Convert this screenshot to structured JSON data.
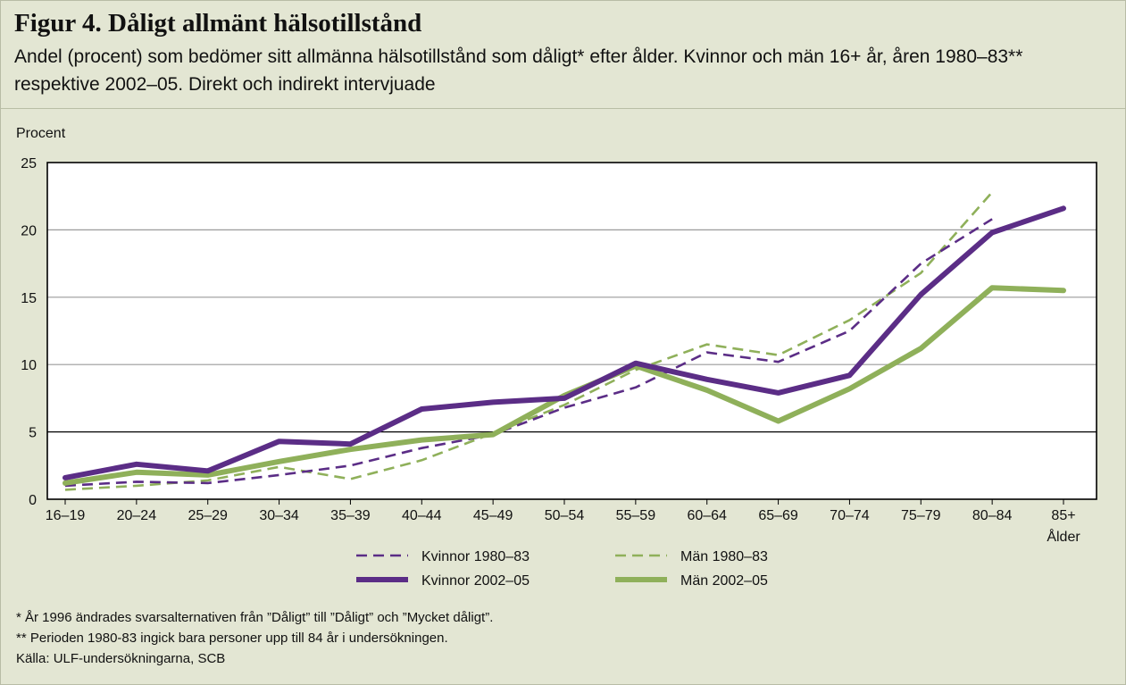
{
  "chart_data": {
    "type": "line",
    "title": "Figur 4. Dåligt allmänt hälsotillstånd",
    "subtitle": "Andel (procent) som bedömer sitt allmänna hälsotillstånd som dåligt* efter ålder. Kvinnor och män 16+ år, åren 1980–83** respektive 2002–05. Direkt och indirekt intervjuade",
    "ylabel": "Procent",
    "xlabel": "Ålder",
    "ylim": [
      0,
      25
    ],
    "yticks": [
      "0",
      "5",
      "10",
      "15",
      "20",
      "25"
    ],
    "categories": [
      "16–19",
      "20–24",
      "25–29",
      "30–34",
      "35–39",
      "40–44",
      "45–49",
      "50–54",
      "55–59",
      "60–64",
      "65–69",
      "70–74",
      "75–79",
      "80–84",
      "85+"
    ],
    "grid": true,
    "legend_position": "bottom",
    "series": [
      {
        "name": "Kvinnor 1980–83",
        "color": "#5b2d86",
        "style": "dashed",
        "values": [
          1.0,
          1.3,
          1.2,
          1.8,
          2.5,
          3.8,
          4.8,
          6.8,
          8.3,
          10.9,
          10.2,
          12.5,
          17.5,
          20.8,
          null
        ]
      },
      {
        "name": "Män 1980–83",
        "color": "#8fb05a",
        "style": "dashed",
        "values": [
          0.7,
          1.0,
          1.4,
          2.4,
          1.5,
          2.9,
          4.9,
          7.0,
          9.6,
          11.5,
          10.7,
          13.3,
          16.8,
          22.8,
          null
        ]
      },
      {
        "name": "Kvinnor 2002–05",
        "color": "#5b2d86",
        "style": "solid",
        "values": [
          1.6,
          2.6,
          2.1,
          4.3,
          4.1,
          6.7,
          7.2,
          7.5,
          10.1,
          8.9,
          7.9,
          9.2,
          15.2,
          19.8,
          21.6
        ]
      },
      {
        "name": "Män 2002–05",
        "color": "#8fb05a",
        "style": "solid",
        "values": [
          1.2,
          2.0,
          1.8,
          2.8,
          3.7,
          4.4,
          4.8,
          7.7,
          9.9,
          8.1,
          5.8,
          8.2,
          11.2,
          15.7,
          15.5
        ]
      }
    ]
  },
  "footnotes": {
    "note1": "* År 1996 ändrades svarsalternativen från ”Dåligt” till ”Dåligt” och ”Mycket dåligt”.",
    "note2": "** Perioden 1980-83 ingick bara personer upp till 84 år i undersökningen.",
    "source": "Källa: ULF-undersökningarna, SCB"
  }
}
